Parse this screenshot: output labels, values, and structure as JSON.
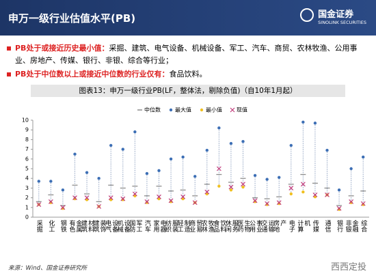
{
  "header": {
    "title": "申万一级行业估值水平(PB)",
    "logo_name": "国金证券",
    "logo_sub": "SINOLINK SECURITIES"
  },
  "bullets": [
    {
      "lead": "PB处于或接近历史最小值：",
      "text": "采掘、建筑、电气设备、机械设备、军工、汽车、商贸、农林牧渔、公用事业、房地产、传媒、银行、非银、综合等行业；"
    },
    {
      "lead": "PB处于中位数以上或接近中位数的行业仅有：",
      "text": "食品饮料。"
    }
  ],
  "chart_data": {
    "type": "range",
    "title": "图表13：申万一级行业PB(LF，整体法，剔除负值)（自10年1月起）",
    "categories": [
      "采掘",
      "化工",
      "钢铁",
      "有色金属",
      "建筑材料",
      "建筑装饰",
      "电气设备",
      "机械设备",
      "国防军工",
      "汽车",
      "家用电器",
      "纺织服装",
      "轻工制造",
      "商业贸易",
      "农林牧渔",
      "食品饮料",
      "休闲服务",
      "医药生物",
      "公用事业",
      "交通运输",
      "房地产",
      "电子",
      "计算机",
      "传媒",
      "通信",
      "银行",
      "非银金融",
      "综合"
    ],
    "series": [
      {
        "name": "中位数",
        "color": "#8c8c8c",
        "values": [
          1.6,
          2.3,
          1.2,
          3.3,
          2.4,
          1.6,
          3.3,
          3.0,
          3.2,
          2.2,
          3.2,
          2.7,
          2.8,
          2.2,
          3.4,
          4.4,
          3.6,
          4.0,
          2.0,
          1.9,
          2.1,
          3.4,
          4.4,
          3.5,
          3.0,
          1.2,
          2.2,
          2.7
        ]
      },
      {
        "name": "最大值",
        "color": "#3d6fb5",
        "values": [
          3.7,
          3.7,
          2.8,
          6.5,
          4.6,
          4.0,
          7.4,
          7.0,
          8.8,
          4.5,
          4.8,
          6.0,
          6.2,
          4.2,
          6.9,
          9.2,
          7.6,
          7.8,
          4.3,
          3.9,
          4.1,
          7.4,
          9.8,
          9.7,
          6.9,
          2.8,
          5.0,
          6.2
        ]
      },
      {
        "name": "最小值",
        "color": "#f0c020",
        "values": [
          1.3,
          1.5,
          0.9,
          1.9,
          1.8,
          1.1,
          1.8,
          1.8,
          2.2,
          1.5,
          1.9,
          1.6,
          1.9,
          1.5,
          2.4,
          3.2,
          2.8,
          3.1,
          1.6,
          1.3,
          1.4,
          2.4,
          2.6,
          2.1,
          2.3,
          0.8,
          1.5,
          1.3
        ]
      },
      {
        "name": "现值",
        "color": "#c0397a",
        "values": [
          1.3,
          1.6,
          1.0,
          2.0,
          2.0,
          1.1,
          2.0,
          1.9,
          2.4,
          1.6,
          2.1,
          1.7,
          2.1,
          1.5,
          2.6,
          5.0,
          3.1,
          3.4,
          1.7,
          1.4,
          1.5,
          3.0,
          3.4,
          2.3,
          2.3,
          0.9,
          1.6,
          1.4
        ]
      }
    ],
    "ylim": [
      0,
      10
    ],
    "yticks": [
      0,
      1,
      2,
      3,
      4,
      5,
      6,
      7,
      8,
      9,
      10
    ]
  },
  "source": "来源：Wind、国金证券研究所",
  "watermark": "西西定投"
}
